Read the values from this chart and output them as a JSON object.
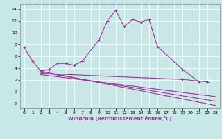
{
  "background_color": "#c8e8e8",
  "line_color": "#993399",
  "grid_color": "#ffffff",
  "xlabel": "Windchill (Refroidissement éolien,°C)",
  "xlim": [
    -0.5,
    23.5
  ],
  "ylim": [
    -2.8,
    14.8
  ],
  "xticks": [
    0,
    1,
    2,
    3,
    4,
    5,
    6,
    7,
    8,
    9,
    10,
    11,
    12,
    13,
    14,
    15,
    16,
    17,
    18,
    19,
    20,
    21,
    22,
    23
  ],
  "yticks": [
    -2,
    0,
    2,
    4,
    6,
    8,
    10,
    12,
    14
  ],
  "line1_x": [
    0,
    1,
    2,
    3,
    4,
    5,
    6,
    7,
    9,
    10,
    11,
    12,
    13,
    14,
    15,
    16,
    19,
    21
  ],
  "line1_y": [
    7.5,
    5.2,
    3.5,
    3.8,
    4.8,
    4.8,
    4.5,
    5.2,
    8.8,
    12.0,
    13.8,
    11.0,
    12.2,
    11.8,
    12.2,
    7.7,
    3.8,
    1.7
  ],
  "line2_x": [
    2,
    23
  ],
  "line2_y": [
    3.5,
    -2.3
  ],
  "line3_x": [
    2,
    23
  ],
  "line3_y": [
    3.3,
    -1.6
  ],
  "line4_x": [
    2,
    19,
    22
  ],
  "line4_y": [
    3.1,
    2.1,
    1.7
  ],
  "line5_x": [
    2,
    23
  ],
  "line5_y": [
    2.9,
    -0.8
  ]
}
